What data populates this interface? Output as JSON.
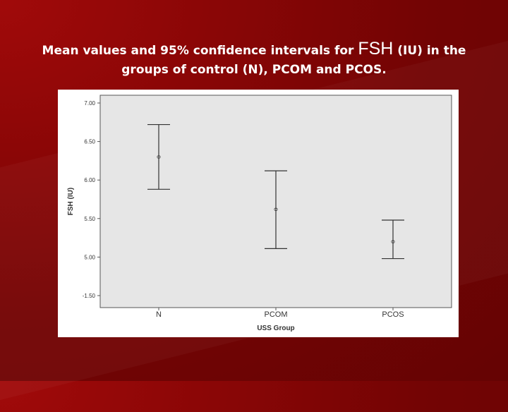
{
  "slide": {
    "title_part1": "Mean values and 95% confidence intervals for ",
    "title_big": "FSH",
    "title_part2": " (IU) in the",
    "title_line2": "groups of control (N), PCOM and PCOS."
  },
  "chart_data": {
    "type": "errorbar",
    "xlabel": "USS Group",
    "ylabel": "FSH (IU)",
    "y_tick_labels": [
      "7.00",
      "6.50",
      "6.00",
      "5.50",
      "5.00",
      "-1.50"
    ],
    "categories": [
      "N",
      "PCOM",
      "PCOS"
    ],
    "series": [
      {
        "marker": "o",
        "means": [
          6.3,
          5.62,
          5.2
        ],
        "lower": [
          5.88,
          5.11,
          4.98
        ],
        "upper": [
          6.72,
          6.12,
          5.48
        ]
      }
    ],
    "grid": false,
    "colors": {
      "plot_bg": "#e6e6e6",
      "frame": "#555555",
      "marks": "#333333"
    }
  }
}
